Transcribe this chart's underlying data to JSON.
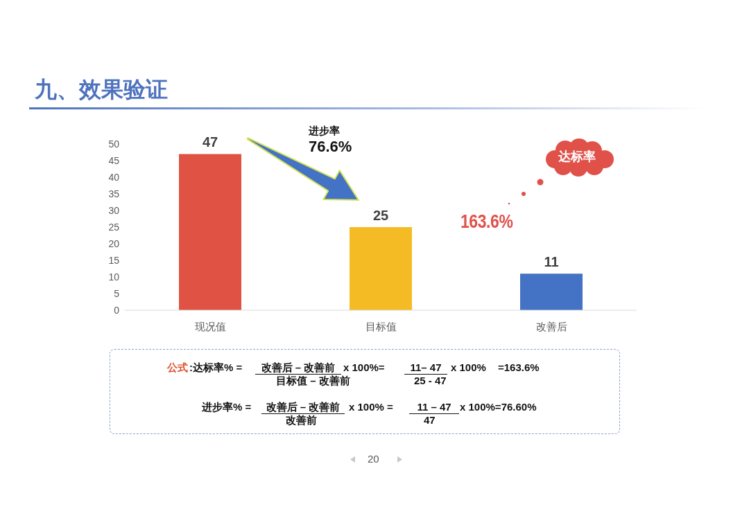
{
  "chart_data": {
    "type": "bar",
    "title": "九、效果验证",
    "categories": [
      "现况值",
      "目标值",
      "改善后"
    ],
    "values": [
      47,
      25,
      11
    ],
    "colors": [
      "#e05244",
      "#f4bb24",
      "#4472c4"
    ],
    "ylim": [
      0,
      50
    ],
    "yticks": [
      0,
      5,
      10,
      15,
      20,
      25,
      30,
      35,
      40,
      45,
      50
    ],
    "data_labels": true,
    "annotations": [
      "进步率",
      "76.6%",
      "达标率",
      "163.6%",
      "公式",
      ":达标率% =",
      "改善后 – 改善前",
      "目标值 – 改善前",
      "x 100%=",
      "11– 47",
      "25 - 47",
      "x 100%",
      "=163.6%",
      "进步率% =",
      "改善后 – 改善前",
      "改善前",
      "x 100% =",
      "11 – 47",
      "47",
      "x 100%=76.60%",
      "20"
    ]
  }
}
